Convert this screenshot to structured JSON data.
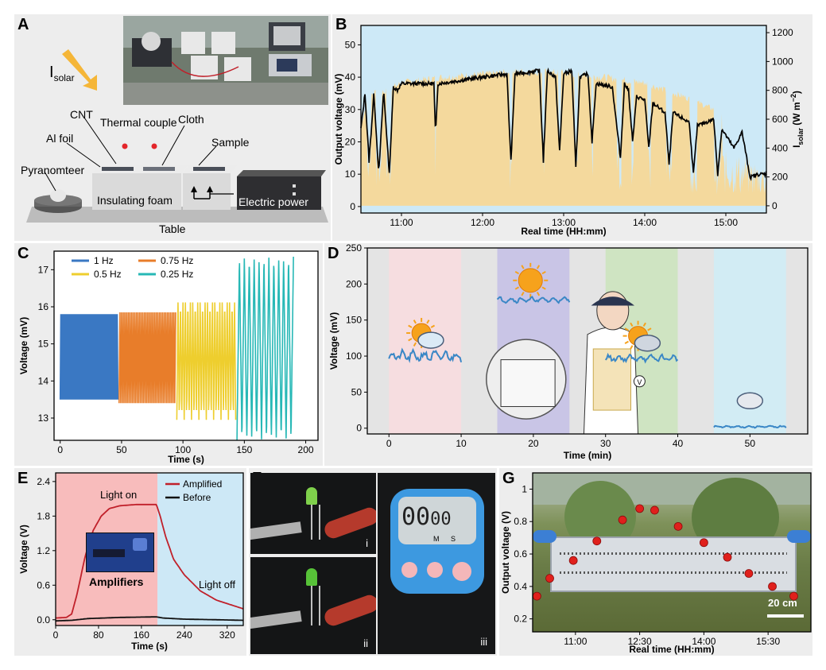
{
  "panels": {
    "A": {
      "letter": "A",
      "isolar_main": "I",
      "isolar_sub": "solar",
      "labels": {
        "cnt": "CNT",
        "al_foil": "Al foil",
        "thermal_couple": "Thermal couple",
        "cloth": "Cloth",
        "sample": "Sample",
        "pyranometer": "Pyranomteer",
        "foam": "Insulating foam",
        "power": "Electric power",
        "table": "Table"
      }
    },
    "B": {
      "letter": "B"
    },
    "C": {
      "letter": "C"
    },
    "D": {
      "letter": "D"
    },
    "E": {
      "letter": "E",
      "amplifiers": "Amplifiers",
      "light_on": "Light on",
      "light_off": "Light off"
    },
    "F": {
      "letter": "F",
      "sub_i": "i",
      "sub_ii": "ii",
      "sub_iii": "iii",
      "timer_digits": "00",
      "timer_digits2": "00",
      "timer_m": "M",
      "timer_s": "S"
    },
    "G": {
      "letter": "G",
      "scale_bar": "20 cm"
    }
  },
  "colors": {
    "sky": "#cde9f7",
    "tan": "#f4d99d",
    "red": "#c0202a",
    "blue": "#3a78c3",
    "orange": "#e87d2a",
    "yellow": "#eece2e",
    "teal": "#27b8b6",
    "data_blue": "#3a87c6"
  },
  "chart_data": [
    {
      "id": "B",
      "type": "line",
      "xlabel": "Real time (HH:mm)",
      "ylabel": "Output voltage (mV)",
      "y2label_main": "I",
      "y2label_sub": "solar",
      "y2label_unit": " (W m",
      "y2label_sup": "−2",
      "y2label_end": ")",
      "xlim": [
        10.5,
        15.5
      ],
      "ylim": [
        -2,
        56
      ],
      "y2lim": [
        -50,
        1250
      ],
      "x_ticks": [
        11,
        12,
        13,
        14,
        15
      ],
      "x_tick_labels": [
        "11:00",
        "12:00",
        "13:00",
        "14:00",
        "15:00"
      ],
      "y_ticks": [
        0,
        10,
        20,
        30,
        40,
        50
      ],
      "y2_ticks": [
        0,
        200,
        400,
        600,
        800,
        1000,
        1200
      ],
      "voltage_keypoints": [
        [
          10.5,
          24
        ],
        [
          10.55,
          35
        ],
        [
          10.6,
          14
        ],
        [
          10.66,
          35
        ],
        [
          10.72,
          10
        ],
        [
          10.78,
          36
        ],
        [
          10.85,
          10
        ],
        [
          10.9,
          37
        ],
        [
          10.95,
          36
        ],
        [
          11.0,
          38
        ],
        [
          11.2,
          38
        ],
        [
          11.4,
          38
        ],
        [
          11.42,
          22
        ],
        [
          11.45,
          38
        ],
        [
          12.0,
          40
        ],
        [
          12.3,
          41
        ],
        [
          12.35,
          14
        ],
        [
          12.4,
          41
        ],
        [
          12.7,
          42
        ],
        [
          12.75,
          14
        ],
        [
          12.8,
          42
        ],
        [
          12.9,
          40
        ],
        [
          12.95,
          17
        ],
        [
          13.0,
          41
        ],
        [
          13.1,
          42
        ],
        [
          13.15,
          12
        ],
        [
          13.2,
          40
        ],
        [
          13.3,
          41
        ],
        [
          13.35,
          20
        ],
        [
          13.4,
          38
        ],
        [
          13.6,
          37
        ],
        [
          13.7,
          15
        ],
        [
          13.75,
          38
        ],
        [
          13.8,
          36
        ],
        [
          13.85,
          20
        ],
        [
          13.9,
          34
        ],
        [
          14.0,
          33
        ],
        [
          14.05,
          18
        ],
        [
          14.1,
          32
        ],
        [
          14.25,
          29
        ],
        [
          14.3,
          13
        ],
        [
          14.35,
          29
        ],
        [
          14.55,
          26
        ],
        [
          14.6,
          10
        ],
        [
          14.65,
          25
        ],
        [
          14.85,
          27
        ],
        [
          14.9,
          10
        ],
        [
          14.95,
          24
        ],
        [
          15.1,
          18
        ],
        [
          15.2,
          23
        ],
        [
          15.3,
          9
        ],
        [
          15.4,
          10
        ],
        [
          15.5,
          10
        ]
      ],
      "solar_keypoints": [
        [
          10.5,
          560
        ],
        [
          10.6,
          780
        ],
        [
          10.8,
          800
        ],
        [
          11.0,
          860
        ],
        [
          11.5,
          900
        ],
        [
          12.0,
          920
        ],
        [
          12.5,
          940
        ],
        [
          13.0,
          930
        ],
        [
          13.5,
          900
        ],
        [
          14.0,
          860
        ],
        [
          14.5,
          760
        ],
        [
          15.0,
          640
        ],
        [
          15.5,
          500
        ]
      ]
    },
    {
      "id": "C",
      "type": "line",
      "xlabel": "Time (s)",
      "ylabel": "Voltage (mV)",
      "xlim": [
        -5,
        210
      ],
      "ylim": [
        12.4,
        17.5
      ],
      "x_ticks": [
        0,
        50,
        100,
        150,
        200
      ],
      "y_ticks": [
        13,
        14,
        15,
        16,
        17
      ],
      "series": [
        {
          "name": "1 Hz",
          "color": "#3a78c3",
          "t0": 0,
          "t1": 47,
          "freq": 1,
          "min": 13.5,
          "max": 15.8
        },
        {
          "name": "0.75 Hz",
          "color": "#e87d2a",
          "t0": 48,
          "t1": 94,
          "freq": 0.75,
          "min": 13.4,
          "max": 15.85
        },
        {
          "name": "0.5 Hz",
          "color": "#eece2e",
          "t0": 95,
          "t1": 143,
          "freq": 0.5,
          "min": 12.95,
          "max": 16.25
        },
        {
          "name": "0.25 Hz",
          "color": "#27b8b6",
          "t0": 144,
          "t1": 190,
          "freq": 0.25,
          "min": 12.4,
          "max": 17.35
        }
      ]
    },
    {
      "id": "D",
      "type": "line",
      "xlabel": "Time (min)",
      "ylabel": "Voltage (mV)",
      "xlim": [
        -3,
        58
      ],
      "ylim": [
        -8,
        250
      ],
      "x_ticks": [
        0,
        10,
        20,
        30,
        40,
        50
      ],
      "y_ticks": [
        0,
        50,
        100,
        150,
        200,
        250
      ],
      "bands": [
        [
          0,
          10,
          "#f6dde0"
        ],
        [
          15,
          25,
          "#c9c5e6"
        ],
        [
          30,
          40,
          "#cfe4c2"
        ],
        [
          45,
          55,
          "#d2ecf4"
        ]
      ],
      "segments": [
        {
          "x0": 0,
          "x1": 10,
          "base": 100,
          "amp": 8
        },
        {
          "x0": 15,
          "x1": 25,
          "base": 178,
          "amp": 4
        },
        {
          "x0": 30,
          "x1": 40,
          "base": 97,
          "amp": 5
        },
        {
          "x0": 45,
          "x1": 55,
          "base": 2,
          "amp": 1.5
        }
      ]
    },
    {
      "id": "E",
      "type": "line",
      "xlabel": "Time (s)",
      "ylabel": "Voltage (V)",
      "xlim": [
        0,
        350
      ],
      "ylim": [
        -0.1,
        2.55
      ],
      "x_ticks": [
        0,
        80,
        160,
        240,
        320
      ],
      "y_ticks": [
        0.0,
        0.6,
        1.2,
        1.8,
        2.4
      ],
      "y_tick_labels": [
        "0.0",
        "0.6",
        "1.2",
        "1.8",
        "2.4"
      ],
      "light_on_until": 190,
      "series": [
        {
          "name": "Amplified",
          "color": "#c0202a",
          "points": [
            [
              0,
              0.03
            ],
            [
              20,
              0.04
            ],
            [
              30,
              0.1
            ],
            [
              40,
              0.45
            ],
            [
              55,
              1.1
            ],
            [
              70,
              1.55
            ],
            [
              85,
              1.8
            ],
            [
              100,
              1.93
            ],
            [
              120,
              1.98
            ],
            [
              150,
              2.0
            ],
            [
              188,
              2.0
            ],
            [
              195,
              1.8
            ],
            [
              205,
              1.45
            ],
            [
              220,
              1.05
            ],
            [
              240,
              0.78
            ],
            [
              270,
              0.5
            ],
            [
              300,
              0.34
            ],
            [
              350,
              0.19
            ]
          ]
        },
        {
          "name": "Before",
          "color": "#111111",
          "points": [
            [
              0,
              -0.02
            ],
            [
              30,
              -0.01
            ],
            [
              60,
              0.02
            ],
            [
              120,
              0.04
            ],
            [
              188,
              0.05
            ],
            [
              200,
              0.03
            ],
            [
              240,
              0.01
            ],
            [
              300,
              0.0
            ],
            [
              350,
              -0.01
            ]
          ]
        }
      ]
    },
    {
      "id": "G",
      "type": "scatter",
      "xlabel": "Real time (HH:mm)",
      "ylabel": "Output voltage (V)",
      "xlim": [
        10.0,
        16.5
      ],
      "ylim": [
        0.12,
        1.1
      ],
      "x_ticks": [
        11.0,
        12.5,
        14.0,
        15.5
      ],
      "x_tick_labels": [
        "11:00",
        "12:30",
        "14:00",
        "15:30"
      ],
      "y_ticks": [
        0.2,
        0.4,
        0.6,
        0.8,
        1.0
      ],
      "points": [
        [
          10.1,
          0.34
        ],
        [
          10.4,
          0.45
        ],
        [
          10.95,
          0.56
        ],
        [
          11.5,
          0.68
        ],
        [
          12.1,
          0.81
        ],
        [
          12.5,
          0.88
        ],
        [
          12.85,
          0.87
        ],
        [
          13.4,
          0.77
        ],
        [
          14.0,
          0.67
        ],
        [
          14.55,
          0.58
        ],
        [
          15.05,
          0.48
        ],
        [
          15.6,
          0.4
        ],
        [
          16.1,
          0.34
        ]
      ]
    }
  ]
}
